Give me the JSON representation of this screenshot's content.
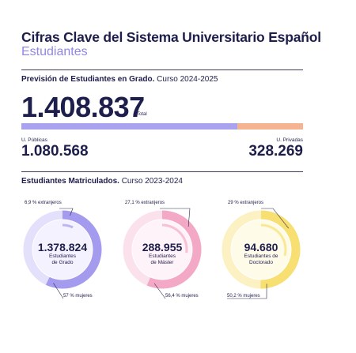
{
  "header": {
    "title": "Cifras Clave del Sistema Universitario Español",
    "subtitle": "Estudiantes"
  },
  "forecast": {
    "heading_bold": "Previsión de Estudiantes en Grado.",
    "heading_rest": " Curso 2024-2025",
    "total": "1.408.837",
    "total_label": "Total",
    "public_label": "U. Públicas",
    "public_value": "1.080.568",
    "private_label": "U. Privadas",
    "private_value": "328.269",
    "public_share": 0.767,
    "private_share": 0.233,
    "public_color": "#a9a2ee",
    "private_color": "#f5b391"
  },
  "enrolled": {
    "heading_bold": "Estudiantes Matriculados.",
    "heading_rest": " Curso 2023-2024",
    "items": [
      {
        "value": "1.378.824",
        "caption_1": "Estudiantes",
        "caption_2": "de Grado",
        "foreign": "6,9 % extranjeros",
        "women": "57 % mujeres",
        "foreign_pct": 6.9,
        "women_pct": 57,
        "color_main": "#a49bef",
        "color_light": "#e3e0fb",
        "color_fill": "#f4f2fe"
      },
      {
        "value": "288.955",
        "caption_1": "Estudiantes",
        "caption_2": "de Máster",
        "foreign": "27,1 % extranjeros",
        "women": "56,4  % mujeres",
        "foreign_pct": 27.1,
        "women_pct": 56.4,
        "color_main": "#f3a9c6",
        "color_light": "#fbe1ec",
        "color_fill": "#fef3f8"
      },
      {
        "value": "94.680",
        "caption_1": "Estudiantes de",
        "caption_2": "Doctorado",
        "foreign": "29 % extranjeros",
        "women": "50,2 % mujeres",
        "foreign_pct": 29,
        "women_pct": 50.2,
        "color_main": "#f7df72",
        "color_light": "#fcf1c2",
        "color_fill": "#fefbe9"
      }
    ]
  }
}
